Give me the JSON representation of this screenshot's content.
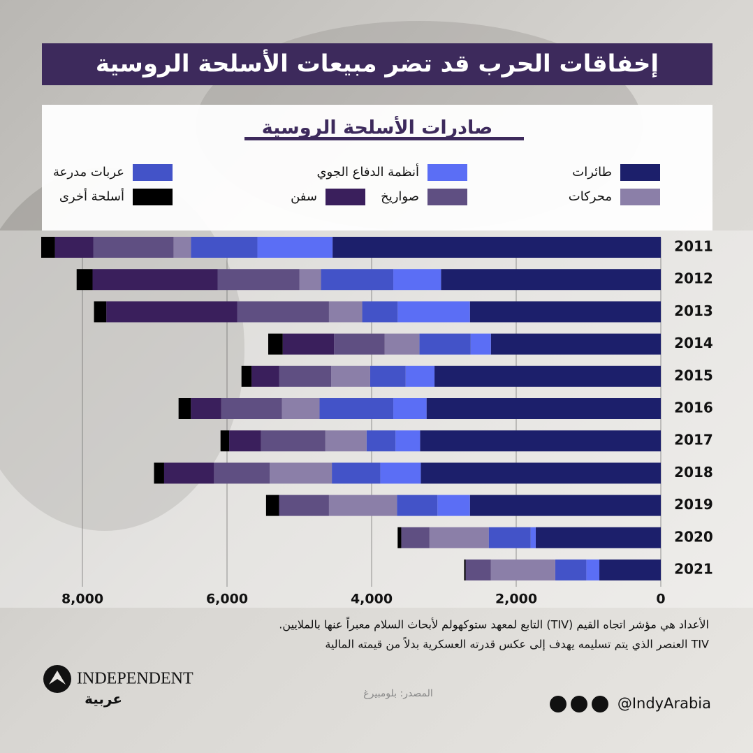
{
  "chart_data": {
    "type": "stacked-bar-horizontal",
    "title": "إخفاقات الحرب قد تضر مبيعات الأسلحة الروسية",
    "subtitle": "صادرات الأسلحة الروسية",
    "categories": [
      "2011",
      "2012",
      "2013",
      "2014",
      "2015",
      "2016",
      "2017",
      "2018",
      "2019",
      "2020",
      "2021"
    ],
    "series": [
      {
        "name": "طائرات",
        "color": "#1c1f6b",
        "values": [
          4540,
          3040,
          2640,
          2350,
          3130,
          3240,
          3330,
          3320,
          2640,
          1730,
          850
        ]
      },
      {
        "name": "أنظمة الدفاع الجوي",
        "color": "#5b6ef5",
        "values": [
          1040,
          660,
          1000,
          280,
          400,
          460,
          340,
          560,
          450,
          70,
          180
        ]
      },
      {
        "name": "عربات مدرعة",
        "color": "#4353c8",
        "values": [
          920,
          1000,
          490,
          710,
          490,
          1020,
          400,
          670,
          560,
          580,
          430
        ]
      },
      {
        "name": "محركات",
        "color": "#8b7fa8",
        "values": [
          240,
          300,
          460,
          480,
          540,
          520,
          570,
          860,
          940,
          820,
          890
        ]
      },
      {
        "name": "صواريخ",
        "color": "#5f4f82",
        "values": [
          1110,
          1130,
          1270,
          700,
          720,
          840,
          890,
          770,
          690,
          390,
          350
        ]
      },
      {
        "name": "سفن",
        "color": "#3a1f5c",
        "values": [
          530,
          1730,
          1810,
          710,
          380,
          420,
          440,
          690,
          0,
          0,
          0
        ]
      },
      {
        "name": "أسلحة أخرى",
        "color": "#000000",
        "values": [
          190,
          220,
          170,
          200,
          140,
          170,
          120,
          140,
          180,
          50,
          20
        ]
      }
    ],
    "xlim": [
      0,
      8500
    ],
    "xticks": [
      0,
      {
        "value": 2000,
        "label": "2,000"
      },
      {
        "value": 4000,
        "label": "4,000"
      },
      {
        "value": 6000,
        "label": "6,000"
      },
      {
        "value": 8000,
        "label": "8,000"
      }
    ],
    "grid": true,
    "notes": [
      "الأعداد هي مؤشر اتجاه القيم (TIV) التابع لمعهد ستوكهولم لأبحاث السلام معبراً عنها بالملايين.",
      "TIV العنصر الذي يتم تسليمه يهدف إلى عكس قدرته العسكرية بدلاً من قيمته المالية"
    ],
    "source": "المصدر: بلومبيرغ"
  },
  "branding": {
    "logo": "INDEPENDENT",
    "logo_sub": "عربية",
    "handle": "@IndyArabia"
  }
}
